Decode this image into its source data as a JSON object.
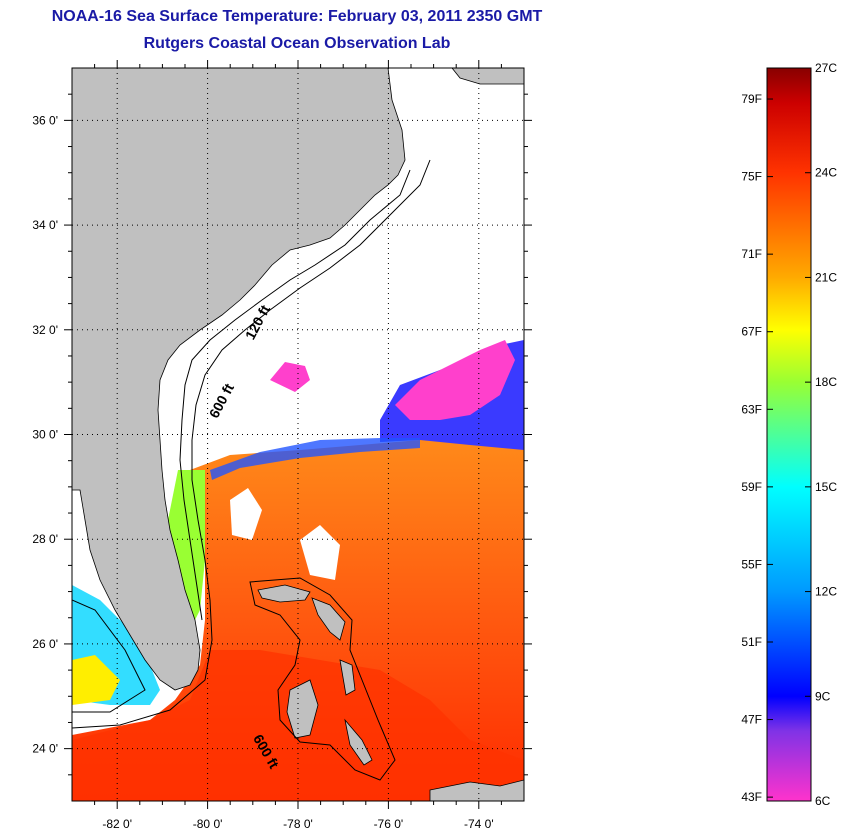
{
  "title": {
    "line1": "NOAA-16 Sea Surface Temperature:  February 03, 2011 2350 GMT",
    "line2": "Rutgers Coastal Ocean Observation Lab"
  },
  "map": {
    "lat_ticks": [
      {
        "value": 36,
        "label": "36 0'"
      },
      {
        "value": 34,
        "label": "34 0'"
      },
      {
        "value": 32,
        "label": "32 0'"
      },
      {
        "value": 30,
        "label": "30 0'"
      },
      {
        "value": 28,
        "label": "28 0'"
      },
      {
        "value": 26,
        "label": "26 0'"
      },
      {
        "value": 24,
        "label": "24 0'"
      }
    ],
    "lon_ticks": [
      {
        "value": -82,
        "label": "-82 0'"
      },
      {
        "value": -80,
        "label": "-80 0'"
      },
      {
        "value": -78,
        "label": "-78 0'"
      },
      {
        "value": -76,
        "label": "-76 0'"
      },
      {
        "value": -74,
        "label": "-74 0'"
      }
    ],
    "lat_range": [
      23,
      37
    ],
    "lon_range": [
      -83,
      -73
    ],
    "contour_labels": [
      {
        "text": "120 ft",
        "lon": -78.8,
        "lat": 32.1
      },
      {
        "text": "600 ft",
        "lon": -79.6,
        "lat": 30.6
      },
      {
        "text": "600 ft",
        "lon": -78.8,
        "lat": 23.9
      }
    ],
    "colors": {
      "land": "#c0c0c0",
      "cloud": "#ffffff",
      "gridline": "#000000"
    }
  },
  "colorbar": {
    "min_c": 6,
    "max_c": 27,
    "celsius_ticks": [
      {
        "value": 27,
        "label": "27C"
      },
      {
        "value": 24,
        "label": "24C"
      },
      {
        "value": 21,
        "label": "21C"
      },
      {
        "value": 18,
        "label": "18C"
      },
      {
        "value": 15,
        "label": "15C"
      },
      {
        "value": 12,
        "label": "12C"
      },
      {
        "value": 9,
        "label": "9C"
      },
      {
        "value": 6,
        "label": "6C"
      }
    ],
    "fahrenheit_ticks": [
      {
        "value": 79,
        "label": "79F"
      },
      {
        "value": 75,
        "label": "75F"
      },
      {
        "value": 71,
        "label": "71F"
      },
      {
        "value": 67,
        "label": "67F"
      },
      {
        "value": 63,
        "label": "63F"
      },
      {
        "value": 59,
        "label": "59F"
      },
      {
        "value": 55,
        "label": "55F"
      },
      {
        "value": 51,
        "label": "51F"
      },
      {
        "value": 47,
        "label": "47F"
      },
      {
        "value": 43,
        "label": "43F"
      }
    ],
    "gradient_stops": [
      {
        "c": 6,
        "color": "#ff33cc"
      },
      {
        "c": 8,
        "color": "#8033e6"
      },
      {
        "c": 9,
        "color": "#0000ff"
      },
      {
        "c": 12,
        "color": "#0099ff"
      },
      {
        "c": 15,
        "color": "#00ffff"
      },
      {
        "c": 18,
        "color": "#99ff33"
      },
      {
        "c": 19.5,
        "color": "#ffff00"
      },
      {
        "c": 21,
        "color": "#ffaa00"
      },
      {
        "c": 24,
        "color": "#ff3300"
      },
      {
        "c": 26,
        "color": "#cc0000"
      },
      {
        "c": 27,
        "color": "#880000"
      }
    ]
  }
}
